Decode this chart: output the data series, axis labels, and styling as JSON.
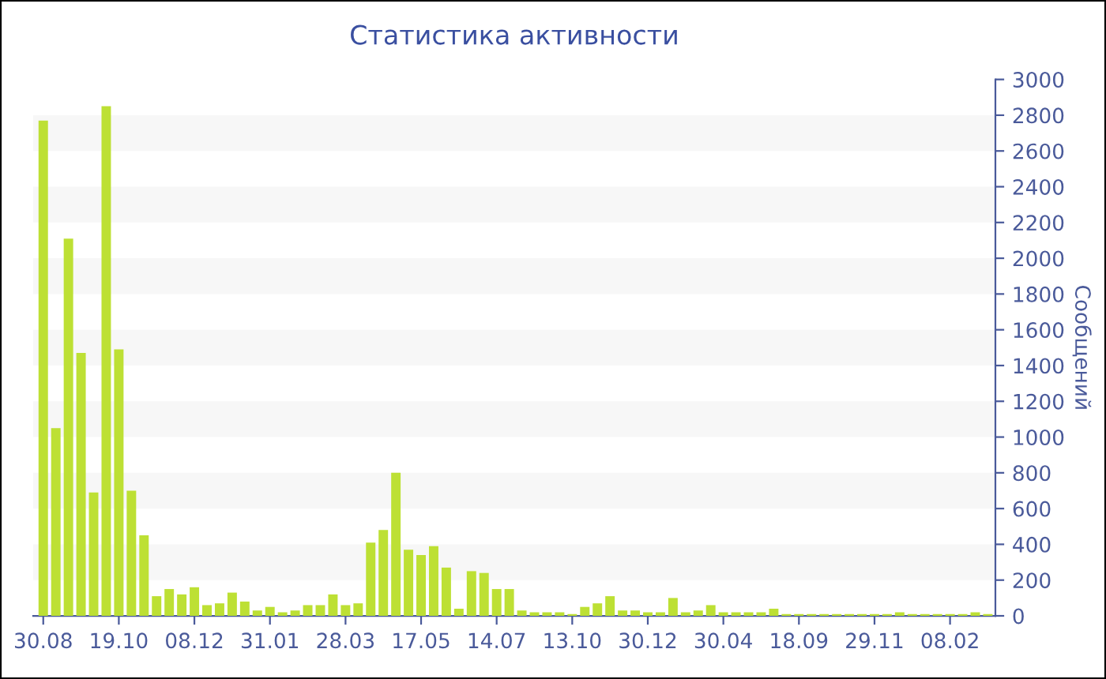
{
  "chart_data": {
    "type": "bar",
    "title": "Статистика активности",
    "ylabel": "Сообщений",
    "categories": [
      "30.08",
      null,
      null,
      null,
      null,
      null,
      "19.10",
      null,
      null,
      null,
      null,
      null,
      "08.12",
      null,
      null,
      null,
      null,
      null,
      "31.01",
      null,
      null,
      null,
      null,
      null,
      "28.03",
      null,
      null,
      null,
      null,
      null,
      "17.05",
      null,
      null,
      null,
      null,
      null,
      "14.07",
      null,
      null,
      null,
      null,
      null,
      "13.10",
      null,
      null,
      null,
      null,
      null,
      "30.12",
      null,
      null,
      null,
      null,
      null,
      "30.04",
      null,
      null,
      null,
      null,
      null,
      "18.09",
      null,
      null,
      null,
      null,
      null,
      "29.11",
      null,
      null,
      null,
      null,
      null,
      "08.02",
      null,
      null,
      null
    ],
    "values": [
      2770,
      1050,
      2110,
      1470,
      690,
      2850,
      1490,
      700,
      450,
      110,
      150,
      120,
      160,
      60,
      70,
      130,
      80,
      30,
      50,
      20,
      30,
      60,
      60,
      120,
      60,
      70,
      410,
      480,
      800,
      370,
      340,
      390,
      270,
      40,
      250,
      240,
      150,
      150,
      30,
      20,
      20,
      20,
      10,
      50,
      70,
      110,
      30,
      30,
      20,
      20,
      100,
      20,
      30,
      60,
      20,
      20,
      20,
      20,
      40,
      10,
      10,
      10,
      10,
      10,
      10,
      10,
      10,
      10,
      20,
      10,
      10,
      10,
      10,
      10,
      20,
      10
    ],
    "color": "#bde034",
    "ylim": [
      0,
      3000
    ],
    "yticks": [
      0,
      200,
      400,
      600,
      800,
      1000,
      1200,
      1400,
      1600,
      1800,
      2000,
      2200,
      2400,
      2600,
      2800,
      3000
    ],
    "legend": false,
    "bands": [
      {
        "axis": "y",
        "from": 200,
        "to": 400,
        "color": "#f7f7f7"
      },
      {
        "axis": "y",
        "from": 600,
        "to": 800,
        "color": "#f7f7f7"
      },
      {
        "axis": "y",
        "from": 1000,
        "to": 1200,
        "color": "#f7f7f7"
      },
      {
        "axis": "y",
        "from": 1400,
        "to": 1600,
        "color": "#f7f7f7"
      },
      {
        "axis": "y",
        "from": 1800,
        "to": 2000,
        "color": "#f7f7f7"
      },
      {
        "axis": "y",
        "from": 2200,
        "to": 2400,
        "color": "#f7f7f7"
      },
      {
        "axis": "y",
        "from": 2600,
        "to": 2800,
        "color": "#f7f7f7"
      }
    ]
  }
}
